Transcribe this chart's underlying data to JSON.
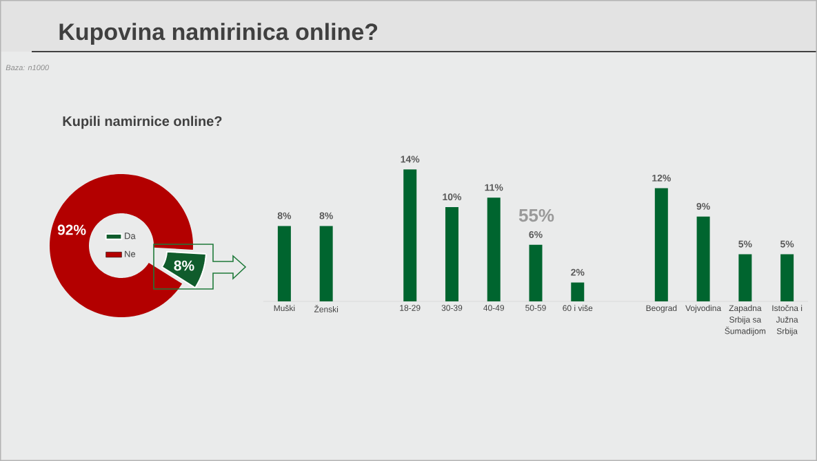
{
  "chart_data": [
    {
      "type": "donut",
      "title": "Kupovina namirinica online?",
      "subtitle": "Kupili namirnice online?",
      "annotations": [
        "Baza: n1000"
      ],
      "categories": [
        "Da",
        "Ne"
      ],
      "values": [
        8,
        92
      ],
      "colors": [
        "#105c2c",
        "#b30000"
      ],
      "value_labels": [
        "8%",
        "92%"
      ],
      "legend": "center"
    },
    {
      "type": "bar",
      "categories": [
        "Muški",
        "Ženski",
        null,
        "18-29",
        "30-39",
        "40-49",
        "50-59",
        "60 i više",
        null,
        "Beograd",
        "Vojvodina",
        "Zapadna Srbija sa Šumadijom",
        "Istočna i Južna Srbija"
      ],
      "values": [
        8,
        8,
        null,
        14,
        10,
        11,
        6,
        2,
        null,
        12,
        9,
        5,
        5
      ],
      "value_labels": [
        "8%",
        "8%",
        null,
        "14%",
        "10%",
        "11%",
        "6%",
        "2%",
        null,
        "12%",
        "9%",
        "5%",
        "5%"
      ],
      "color": "#00652f",
      "tick_labels": "x",
      "annotations": [
        "55%"
      ]
    }
  ]
}
